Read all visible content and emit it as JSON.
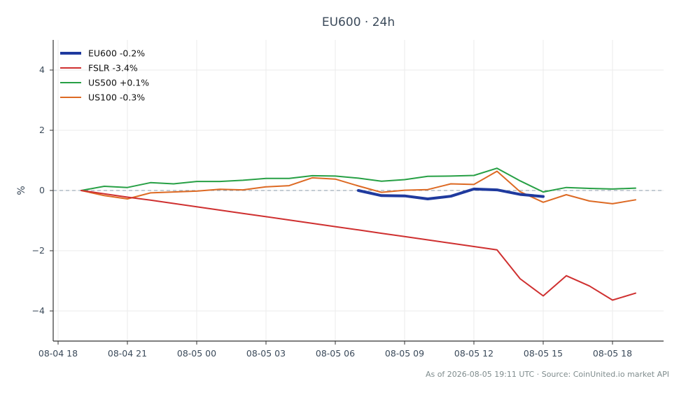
{
  "chart_data": {
    "type": "line",
    "title": "EU600 · 24h",
    "ylabel": "%",
    "xlabel": "",
    "x": [
      "08-04 19",
      "08-04 20",
      "08-04 21",
      "08-04 22",
      "08-04 23",
      "08-05 00",
      "08-05 01",
      "08-05 02",
      "08-05 03",
      "08-05 04",
      "08-05 05",
      "08-05 06",
      "08-05 07",
      "08-05 08",
      "08-05 09",
      "08-05 10",
      "08-05 11",
      "08-05 12",
      "08-05 13",
      "08-05 14",
      "08-05 15",
      "08-05 16",
      "08-05 17",
      "08-05 18",
      "08-05 19"
    ],
    "x_ticks": [
      "08-04 18",
      "08-04 21",
      "08-05 00",
      "08-05 03",
      "08-05 06",
      "08-05 09",
      "08-05 12",
      "08-05 15",
      "08-05 18"
    ],
    "y_ticks": [
      4,
      2,
      0,
      -2,
      -4
    ],
    "y_tick_labels": [
      "4",
      "2",
      "0",
      "−2",
      "−4"
    ],
    "ylim": [
      -5,
      5
    ],
    "grid": true,
    "legend_position": "top-left",
    "reference_line": 0,
    "series": [
      {
        "name": "EU600 -0.2%",
        "color": "#1f3a9e",
        "width": 4,
        "values": [
          null,
          null,
          null,
          null,
          null,
          null,
          null,
          null,
          null,
          null,
          null,
          null,
          0.0,
          -0.17,
          -0.18,
          -0.28,
          -0.19,
          0.05,
          0.02,
          -0.13,
          -0.2,
          null,
          null,
          null,
          null
        ]
      },
      {
        "name": "FSLR -3.4%",
        "color": "#cf3030",
        "width": 2,
        "values": [
          0.0,
          -0.11,
          -0.22,
          -0.32,
          -0.43,
          -0.54,
          -0.65,
          -0.76,
          -0.87,
          -0.98,
          -1.09,
          -1.2,
          -1.31,
          -1.42,
          -1.53,
          -1.64,
          -1.75,
          -1.86,
          -1.97,
          -2.93,
          -3.5,
          -2.83,
          -3.17,
          -3.64,
          -3.41
        ]
      },
      {
        "name": "US500 +0.1%",
        "color": "#27a045",
        "width": 2,
        "values": [
          0.0,
          0.14,
          0.1,
          0.26,
          0.22,
          0.3,
          0.3,
          0.34,
          0.4,
          0.4,
          0.49,
          0.48,
          0.41,
          0.31,
          0.36,
          0.47,
          0.48,
          0.5,
          0.74,
          0.32,
          -0.05,
          0.1,
          0.07,
          0.05,
          0.08
        ]
      },
      {
        "name": "US100 -0.3%",
        "color": "#dd6a24",
        "width": 2,
        "values": [
          0.0,
          -0.17,
          -0.28,
          -0.08,
          -0.05,
          -0.02,
          0.04,
          0.02,
          0.12,
          0.16,
          0.42,
          0.38,
          0.15,
          -0.06,
          0.01,
          0.03,
          0.22,
          0.2,
          0.64,
          -0.04,
          -0.39,
          -0.14,
          -0.35,
          -0.44,
          -0.31
        ]
      }
    ],
    "footer": "As of 2026-08-05 19:11 UTC · Source: CoinUnited.io market API"
  }
}
